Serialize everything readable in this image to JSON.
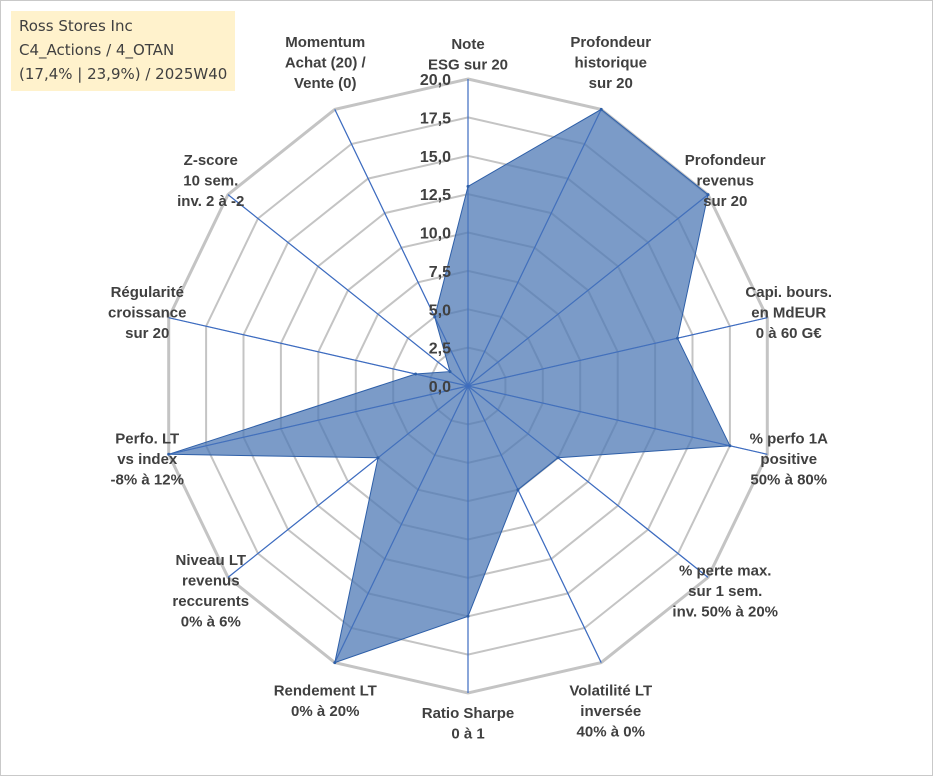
{
  "title_box": {
    "line1": "Ross Stores Inc",
    "line2": "C4_Actions / 4_OTAN",
    "line3": "(17,4% | 23,9%) / 2025W40"
  },
  "chart_data": {
    "type": "radar",
    "title": "Ross Stores Inc",
    "rmin": 0,
    "rmax": 20,
    "ticks": [
      0,
      2.5,
      5,
      7.5,
      10,
      12.5,
      15,
      17.5,
      20
    ],
    "tick_labels": [
      "0,0",
      "2,5",
      "5,0",
      "7,5",
      "10,0",
      "12,5",
      "15,0",
      "17,5",
      "20,0"
    ],
    "categories": [
      {
        "label": [
          "Note",
          "ESG sur 20"
        ],
        "value": 13
      },
      {
        "label": [
          "Profondeur",
          "historique",
          "sur 20"
        ],
        "value": 20
      },
      {
        "label": [
          "Profondeur",
          "revenus",
          "sur 20"
        ],
        "value": 20
      },
      {
        "label": [
          "Capi. bours.",
          "en MdEUR",
          "0 à 60 G€"
        ],
        "value": 14
      },
      {
        "label": [
          "% perfo 1A",
          "positive",
          "50% à 80%"
        ],
        "value": 17.5
      },
      {
        "label": [
          "% perte max.",
          "sur 1 sem.",
          "inv. 50% à 20%"
        ],
        "value": 7.5
      },
      {
        "label": [
          "Volatilité LT",
          "inversée",
          "40% à 0%"
        ],
        "value": 7.5
      },
      {
        "label": [
          "Ratio Sharpe",
          "0 à 1"
        ],
        "value": 15
      },
      {
        "label": [
          "Rendement LT",
          "0% à 20%"
        ],
        "value": 20
      },
      {
        "label": [
          "Niveau LT",
          "revenus",
          "reccurents",
          "0% à 6%"
        ],
        "value": 7.5
      },
      {
        "label": [
          "Perfo. LT",
          "vs index",
          "-8% à 12%"
        ],
        "value": 20
      },
      {
        "label": [
          "Régularité",
          "croissance",
          "sur 20"
        ],
        "value": 3.5
      },
      {
        "label": [
          "Z-score",
          "10 sem.",
          "inv. 2 à -2"
        ],
        "value": 1.5
      },
      {
        "label": [
          "Momentum",
          "Achat (20) /",
          "Vente (0)"
        ],
        "value": 5
      }
    ],
    "colors": {
      "fill": "#4f7ab5",
      "line": "#2e5fa8",
      "grid": "#c4c4c4",
      "spoke": "#3e6cc0",
      "label": "#404040"
    }
  }
}
